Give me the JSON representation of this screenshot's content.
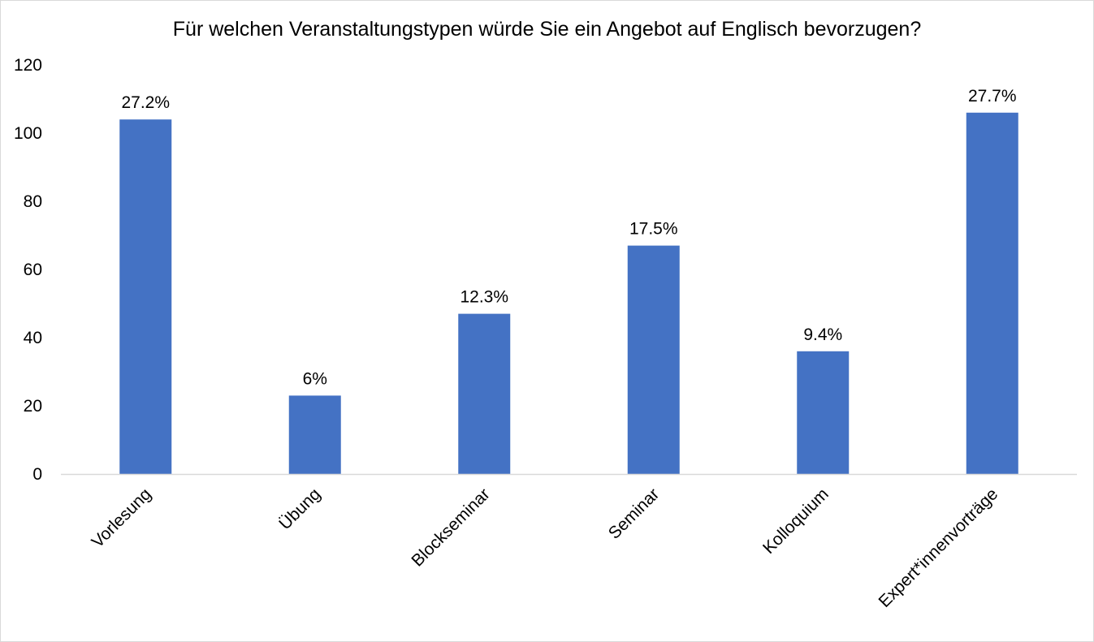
{
  "chart_data": {
    "type": "bar",
    "title": "Für welchen Veranstaltungstypen würde Sie ein Angebot auf Englisch bevorzugen?",
    "xlabel": "",
    "ylabel": "",
    "categories": [
      "Vorlesung",
      "Übung",
      "Blockseminar",
      "Seminar",
      "Kolloquium",
      "Expert*innenvorträge"
    ],
    "values": [
      104,
      23,
      47,
      67,
      36,
      106
    ],
    "data_labels": [
      "27.2%",
      "6%",
      "12.3%",
      "17.5%",
      "9.4%",
      "27.7%"
    ],
    "ylim": [
      0,
      120
    ],
    "yticks": [
      0,
      20,
      40,
      60,
      80,
      100,
      120
    ],
    "grid": false,
    "legend": "none",
    "bar_color": "#4472C4",
    "axis_color": "#d9d9d9"
  }
}
